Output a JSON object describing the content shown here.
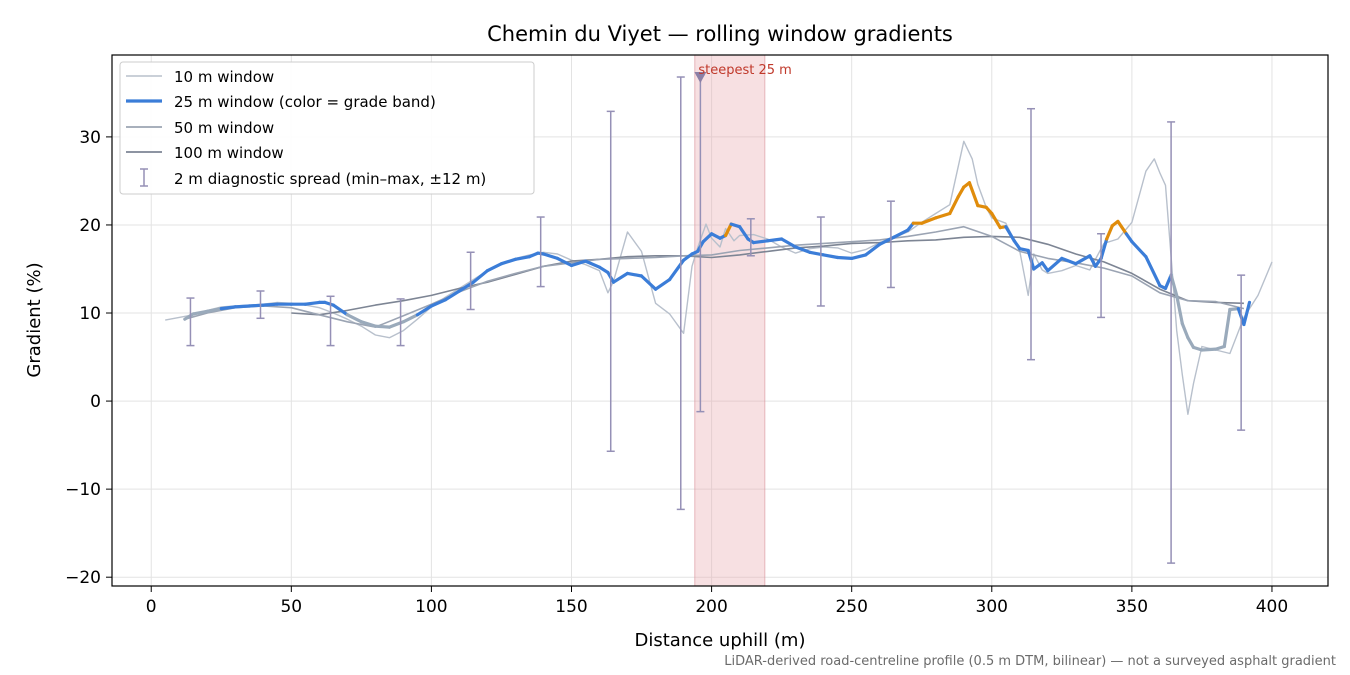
{
  "chart_data": {
    "type": "line",
    "title": "Chemin du Viyet — rolling window gradients",
    "xlabel": "Distance uphill (m)",
    "ylabel": "Gradient (%)",
    "xlim": [
      -14,
      420
    ],
    "ylim": [
      -21,
      39.3
    ],
    "x_ticks": [
      0,
      50,
      100,
      150,
      200,
      250,
      300,
      350,
      400
    ],
    "y_ticks": [
      -20,
      -10,
      0,
      10,
      20,
      30
    ],
    "grid": true,
    "legend_position": "upper-left",
    "footnote": "LiDAR-derived road-centreline profile (0.5 m DTM, bilinear) — not a surveyed asphalt gradient",
    "colors": {
      "w10": "#b8c0cc",
      "w25_base": "#3b7dd8",
      "w25_low": "#9aaabb",
      "w25_steep": "#e08c0b",
      "w50": "#9ba4b3",
      "w100": "#7d8594",
      "errorbar": "#9590b6",
      "highlight": "#e8a7ad",
      "annotation": "#c0392b",
      "marker": "#8b7fa6"
    },
    "series": [
      {
        "name": "10 m window",
        "x": [
          5,
          10,
          15,
          20,
          25,
          30,
          35,
          40,
          45,
          50,
          55,
          60,
          65,
          70,
          75,
          80,
          85,
          90,
          95,
          100,
          105,
          110,
          115,
          120,
          125,
          130,
          135,
          140,
          145,
          150,
          155,
          160,
          163,
          165,
          170,
          175,
          180,
          185,
          190,
          193,
          195,
          198,
          200,
          203,
          205,
          208,
          210,
          215,
          220,
          225,
          230,
          235,
          240,
          245,
          250,
          255,
          260,
          265,
          270,
          275,
          280,
          285,
          290,
          293,
          295,
          298,
          300,
          305,
          310,
          313,
          315,
          318,
          320,
          325,
          330,
          335,
          340,
          345,
          350,
          355,
          358,
          360,
          362,
          364,
          366,
          368,
          370,
          372,
          375,
          380,
          385,
          390,
          395,
          400
        ],
        "y": [
          9.2,
          9.5,
          9.8,
          10.3,
          10.7,
          10.8,
          10.9,
          11,
          11.2,
          11.1,
          10.9,
          10.6,
          10,
          9.3,
          8.5,
          7.5,
          7.2,
          8,
          9.3,
          10.7,
          11.8,
          12.8,
          13.8,
          14.8,
          15.6,
          16.2,
          16.6,
          16.9,
          16.7,
          16,
          15.5,
          14.8,
          12.3,
          13.6,
          19.2,
          17,
          11.1,
          9.9,
          7.7,
          15.3,
          17.4,
          20.1,
          18.5,
          17.5,
          19.6,
          18.2,
          18.8,
          18.9,
          18.4,
          17.5,
          16.8,
          17.3,
          17.5,
          17.4,
          16.8,
          17.2,
          18,
          18.6,
          19.2,
          20.3,
          21.3,
          22.3,
          29.5,
          27.5,
          24.6,
          22,
          20.8,
          20.2,
          17,
          12,
          16.7,
          14.9,
          14.5,
          14.8,
          15.4,
          14.9,
          17.9,
          18.4,
          20.3,
          26.1,
          27.5,
          25.9,
          24.5,
          16.4,
          8,
          3,
          -1.5,
          2,
          6.2,
          5.8,
          5.4,
          9.5,
          12,
          15.8
        ]
      },
      {
        "name": "25 m window (color = grade band)",
        "x": [
          12,
          15,
          20,
          25,
          30,
          35,
          40,
          45,
          50,
          55,
          60,
          62,
          65,
          70,
          75,
          80,
          85,
          90,
          95,
          100,
          105,
          110,
          115,
          120,
          125,
          130,
          135,
          138,
          140,
          145,
          150,
          155,
          160,
          163,
          165,
          170,
          175,
          180,
          185,
          190,
          193,
          195,
          197,
          200,
          203,
          205,
          207,
          210,
          213,
          215,
          220,
          225,
          230,
          235,
          240,
          245,
          250,
          255,
          260,
          265,
          270,
          272,
          275,
          280,
          285,
          288,
          290,
          292,
          295,
          298,
          300,
          303,
          305,
          308,
          310,
          313,
          315,
          318,
          320,
          325,
          330,
          335,
          337,
          339,
          341,
          343,
          345,
          348,
          350,
          355,
          360,
          362,
          364,
          366,
          368,
          370,
          372,
          375,
          380,
          383,
          385,
          388,
          390,
          392
        ],
        "y": [
          9.3,
          9.9,
          10.2,
          10.5,
          10.7,
          10.8,
          10.9,
          11,
          11,
          11,
          11.2,
          11.2,
          10.9,
          9.8,
          9,
          8.5,
          8.4,
          9,
          9.8,
          10.8,
          11.5,
          12.5,
          13.5,
          14.8,
          15.6,
          16.1,
          16.4,
          16.8,
          16.7,
          16.2,
          15.4,
          15.9,
          15.2,
          14.6,
          13.5,
          14.5,
          14.2,
          12.7,
          13.8,
          16,
          16.7,
          17,
          18.1,
          19,
          18.5,
          18.8,
          20.1,
          19.8,
          18.4,
          18,
          18.2,
          18.4,
          17.5,
          16.9,
          16.6,
          16.3,
          16.2,
          16.6,
          17.8,
          18.6,
          19.4,
          20.2,
          20.2,
          20.8,
          21.3,
          23.2,
          24.3,
          24.8,
          22.2,
          22,
          21.3,
          19.7,
          19.8,
          18.2,
          17.3,
          17.1,
          15,
          15.7,
          14.8,
          16.2,
          15.6,
          16.5,
          15.3,
          16.2,
          18.4,
          19.9,
          20.4,
          19,
          18.1,
          16.4,
          13.1,
          12.8,
          14.3,
          12,
          8.8,
          7.2,
          6.1,
          5.8,
          5.9,
          6.2,
          10.4,
          10.5,
          8.7,
          11.2
        ],
        "bands": [
          {
            "x_from": 12,
            "x_to": 23,
            "band": "low"
          },
          {
            "x_from": 68,
            "x_to": 95,
            "band": "low"
          },
          {
            "x_from": 205,
            "x_to": 207,
            "band": "steep"
          },
          {
            "x_from": 272,
            "x_to": 305,
            "band": "steep"
          },
          {
            "x_from": 342,
            "x_to": 347,
            "band": "steep"
          },
          {
            "x_from": 364,
            "x_to": 387,
            "band": "low"
          }
        ]
      },
      {
        "name": "50 m window",
        "x": [
          12,
          20,
          30,
          40,
          50,
          60,
          70,
          80,
          90,
          100,
          110,
          120,
          130,
          140,
          150,
          160,
          170,
          180,
          190,
          200,
          210,
          220,
          230,
          240,
          250,
          260,
          270,
          280,
          290,
          300,
          310,
          320,
          330,
          340,
          350,
          360,
          370,
          380,
          390
        ],
        "y": [
          9.3,
          10,
          10.6,
          10.8,
          10.6,
          9.8,
          9,
          8.4,
          9.7,
          11,
          12.4,
          13.6,
          14.5,
          15.3,
          15.7,
          16.1,
          16.2,
          16.3,
          16.5,
          16.6,
          17.1,
          17.4,
          17.7,
          17.9,
          18.1,
          18.3,
          18.7,
          19.2,
          19.8,
          18.7,
          17,
          16.2,
          15.7,
          15.1,
          14.2,
          12.3,
          11.4,
          11.3,
          10.5
        ]
      },
      {
        "name": "100 m window",
        "x": [
          50,
          60,
          70,
          80,
          90,
          100,
          110,
          120,
          130,
          140,
          150,
          160,
          170,
          180,
          190,
          200,
          210,
          220,
          230,
          240,
          250,
          260,
          270,
          280,
          290,
          300,
          310,
          320,
          330,
          340,
          350,
          360,
          370,
          380,
          390
        ],
        "y": [
          10,
          9.8,
          10.3,
          10.9,
          11.4,
          12,
          12.8,
          13.5,
          14.4,
          15.3,
          15.9,
          16.1,
          16.4,
          16.5,
          16.5,
          16.3,
          16.6,
          17,
          17.4,
          17.6,
          17.9,
          18,
          18.2,
          18.3,
          18.6,
          18.7,
          18.6,
          17.8,
          16.7,
          15.8,
          14.5,
          12.7,
          11.4,
          11.2,
          11.1
        ]
      },
      {
        "name": "2 m diagnostic spread (min–max, ±12 m)",
        "x": [
          14,
          39,
          64,
          89,
          114,
          139,
          164,
          189,
          196,
          214,
          239,
          264,
          314,
          339,
          364,
          389
        ],
        "low": [
          6.3,
          9.4,
          6.3,
          6.3,
          10.4,
          13,
          -5.7,
          -12.3,
          -1.2,
          16.5,
          10.8,
          12.9,
          4.7,
          9.5,
          -18.4,
          -3.3
        ],
        "high": [
          11.7,
          12.5,
          11.9,
          11.6,
          16.9,
          20.9,
          32.9,
          36.8,
          37,
          20.7,
          20.9,
          22.7,
          33.2,
          19,
          31.7,
          14.3
        ]
      }
    ],
    "highlight_region": {
      "x_from": 194,
      "x_to": 219,
      "label": "steepest 25 m",
      "marker_x": 196,
      "marker_y": 36.8
    }
  }
}
